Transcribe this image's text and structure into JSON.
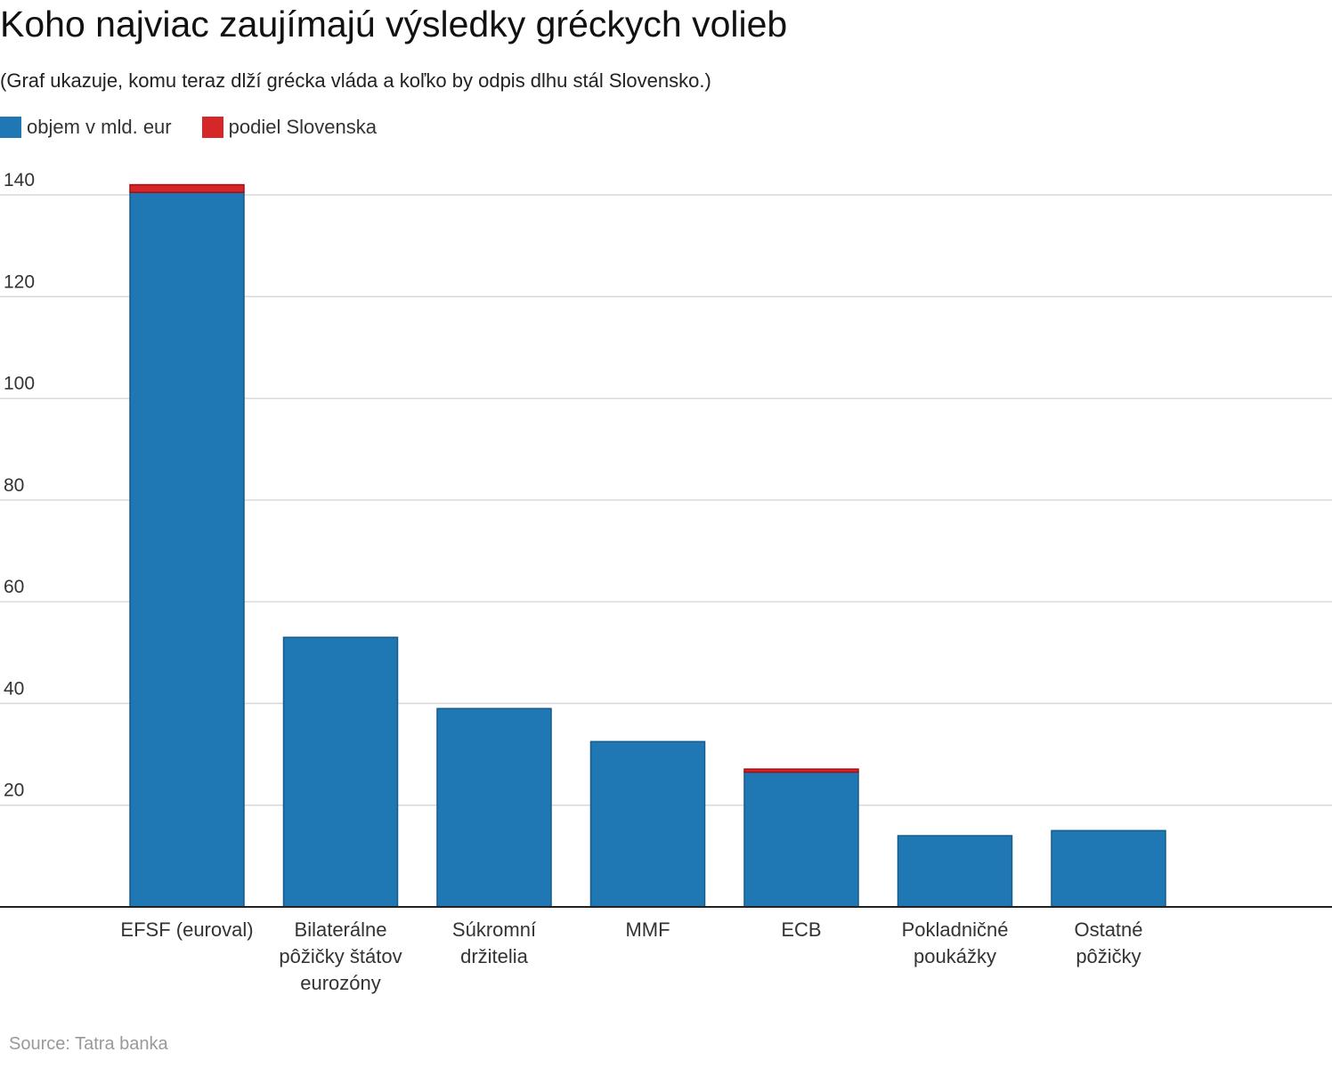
{
  "title": "Koho najviac zaujímajú výsledky gréckych volieb",
  "subtitle": "(Graf ukazuje, komu teraz dlží grécka vláda a koľko by odpis dlhu stál Slovensko.)",
  "source": "Source: Tatra banka",
  "colors": {
    "blue": "#1f77b4",
    "red": "#d62728",
    "blue_stroke": "#155a8a",
    "red_stroke": "#a50f15",
    "grid": "#d9d9d9",
    "axis": "#222222"
  },
  "chart_data": {
    "type": "bar",
    "stacked": true,
    "categories": [
      [
        "EFSF (euroval)"
      ],
      [
        "Bilaterálne",
        "pôžičky štátov",
        "eurozóny"
      ],
      [
        "Súkromní",
        "držitelia"
      ],
      [
        "MMF"
      ],
      [
        "ECB"
      ],
      [
        "Pokladničné",
        "poukážky"
      ],
      [
        "Ostatné",
        "pôžičky"
      ]
    ],
    "series": [
      {
        "name": "objem v mld. eur",
        "color": "#1f77b4",
        "values": [
          140.5,
          53,
          39,
          32.5,
          26.5,
          14,
          15
        ]
      },
      {
        "name": "podiel Slovenska",
        "color": "#d62728",
        "values": [
          1.5,
          0,
          0,
          0,
          0.6,
          0,
          0
        ]
      }
    ],
    "y_ticks": [
      20,
      40,
      60,
      80,
      100,
      120,
      140
    ],
    "ylim": [
      0,
      140
    ],
    "grid": true,
    "legend": "top-left"
  }
}
